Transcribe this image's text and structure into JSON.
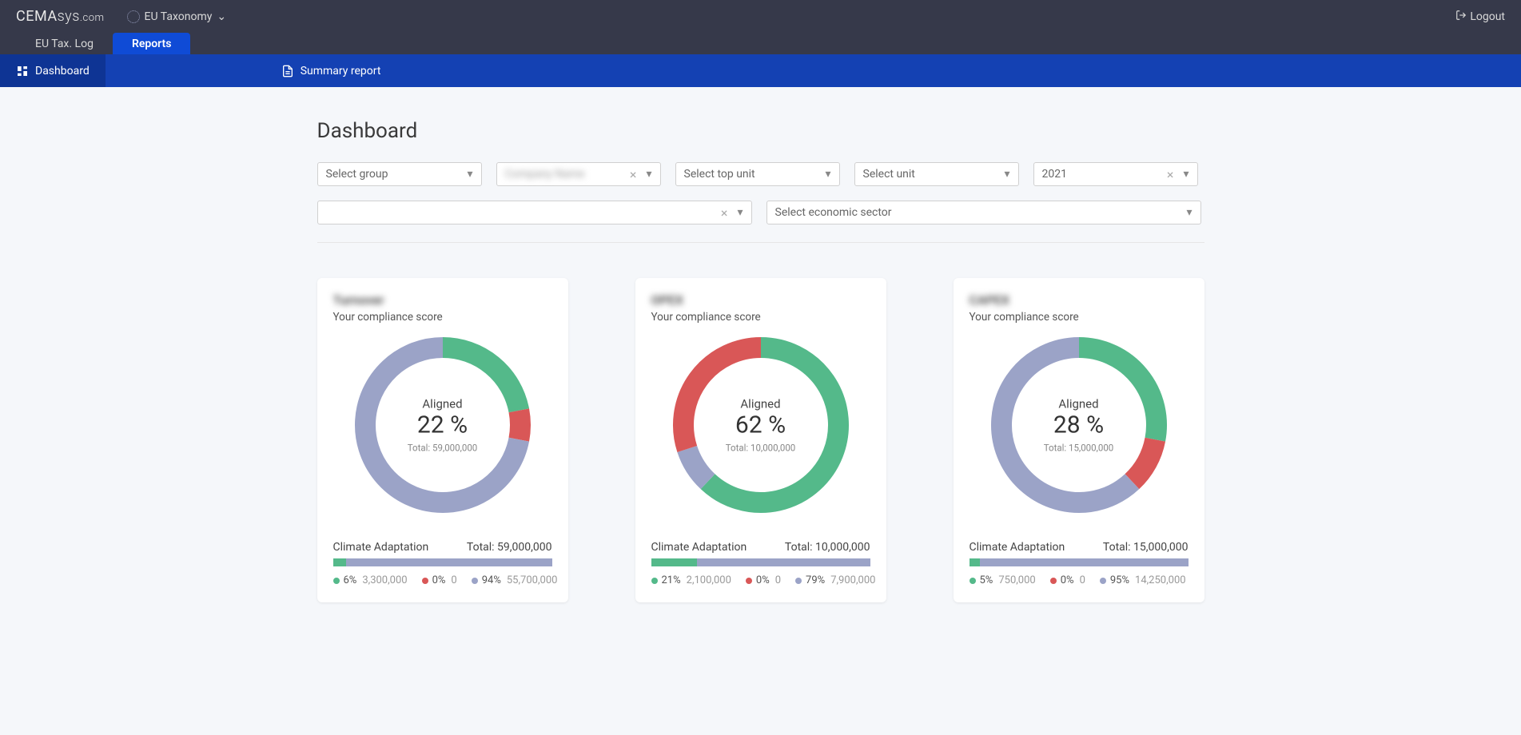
{
  "brand": {
    "a": "CEMA",
    "b": "sys",
    "c": ".com"
  },
  "module": {
    "label": "EU Taxonomy"
  },
  "logout": {
    "label": "Logout"
  },
  "tabs": [
    {
      "label": "EU Tax. Log",
      "active": false
    },
    {
      "label": "Reports",
      "active": true
    }
  ],
  "subnav": [
    {
      "label": "Dashboard",
      "active": true,
      "icon": "dashboard"
    },
    {
      "label": "Summary report",
      "active": false,
      "icon": "report"
    }
  ],
  "page_title": "Dashboard",
  "filters": {
    "group": {
      "placeholder": "Select group"
    },
    "company": {
      "value": "Company Name",
      "clearable": true,
      "blurred": true
    },
    "topunit": {
      "placeholder": "Select top unit"
    },
    "unit": {
      "placeholder": "Select unit"
    },
    "year": {
      "value": "2021",
      "clearable": true
    },
    "extra": {
      "value": "",
      "clearable": true
    },
    "sector": {
      "placeholder": "Select economic sector"
    }
  },
  "colors": {
    "green": "#54b98a",
    "red": "#d95757",
    "grey": "#9ba3c7",
    "bg": "#ffffff"
  },
  "cards": [
    {
      "title": "Turnover",
      "subtitle": "Your compliance score",
      "aligned_label": "Aligned",
      "aligned_pct": "22 %",
      "total_label": "Total: 59,000,000",
      "donut": {
        "segments": [
          {
            "color": "#54b98a",
            "pct": 22
          },
          {
            "color": "#d95757",
            "pct": 6
          },
          {
            "color": "#9ba3c7",
            "pct": 72
          }
        ],
        "radius": 110,
        "thickness": 26
      },
      "breakdown": {
        "title": "Climate Adaptation",
        "total": "Total: 59,000,000",
        "bar": [
          {
            "color": "#54b98a",
            "pct": 6
          },
          {
            "color": "#d95757",
            "pct": 0
          },
          {
            "color": "#9ba3c7",
            "pct": 94
          }
        ],
        "legend": [
          {
            "color": "#54b98a",
            "pct": "6%",
            "val": "3,300,000"
          },
          {
            "color": "#d95757",
            "pct": "0%",
            "val": "0"
          },
          {
            "color": "#9ba3c7",
            "pct": "94%",
            "val": "55,700,000"
          }
        ]
      }
    },
    {
      "title": "OPEX",
      "subtitle": "Your compliance score",
      "aligned_label": "Aligned",
      "aligned_pct": "62 %",
      "total_label": "Total: 10,000,000",
      "donut": {
        "segments": [
          {
            "color": "#54b98a",
            "pct": 62
          },
          {
            "color": "#9ba3c7",
            "pct": 8
          },
          {
            "color": "#d95757",
            "pct": 30
          }
        ],
        "radius": 110,
        "thickness": 26
      },
      "breakdown": {
        "title": "Climate Adaptation",
        "total": "Total: 10,000,000",
        "bar": [
          {
            "color": "#54b98a",
            "pct": 21
          },
          {
            "color": "#d95757",
            "pct": 0
          },
          {
            "color": "#9ba3c7",
            "pct": 79
          }
        ],
        "legend": [
          {
            "color": "#54b98a",
            "pct": "21%",
            "val": "2,100,000"
          },
          {
            "color": "#d95757",
            "pct": "0%",
            "val": "0"
          },
          {
            "color": "#9ba3c7",
            "pct": "79%",
            "val": "7,900,000"
          }
        ]
      }
    },
    {
      "title": "CAPEX",
      "subtitle": "Your compliance score",
      "aligned_label": "Aligned",
      "aligned_pct": "28 %",
      "total_label": "Total: 15,000,000",
      "donut": {
        "segments": [
          {
            "color": "#54b98a",
            "pct": 28
          },
          {
            "color": "#d95757",
            "pct": 10
          },
          {
            "color": "#9ba3c7",
            "pct": 62
          }
        ],
        "radius": 110,
        "thickness": 26
      },
      "breakdown": {
        "title": "Climate Adaptation",
        "total": "Total: 15,000,000",
        "bar": [
          {
            "color": "#54b98a",
            "pct": 5
          },
          {
            "color": "#d95757",
            "pct": 0
          },
          {
            "color": "#9ba3c7",
            "pct": 95
          }
        ],
        "legend": [
          {
            "color": "#54b98a",
            "pct": "5%",
            "val": "750,000"
          },
          {
            "color": "#d95757",
            "pct": "0%",
            "val": "0"
          },
          {
            "color": "#9ba3c7",
            "pct": "95%",
            "val": "14,250,000"
          }
        ]
      }
    }
  ]
}
